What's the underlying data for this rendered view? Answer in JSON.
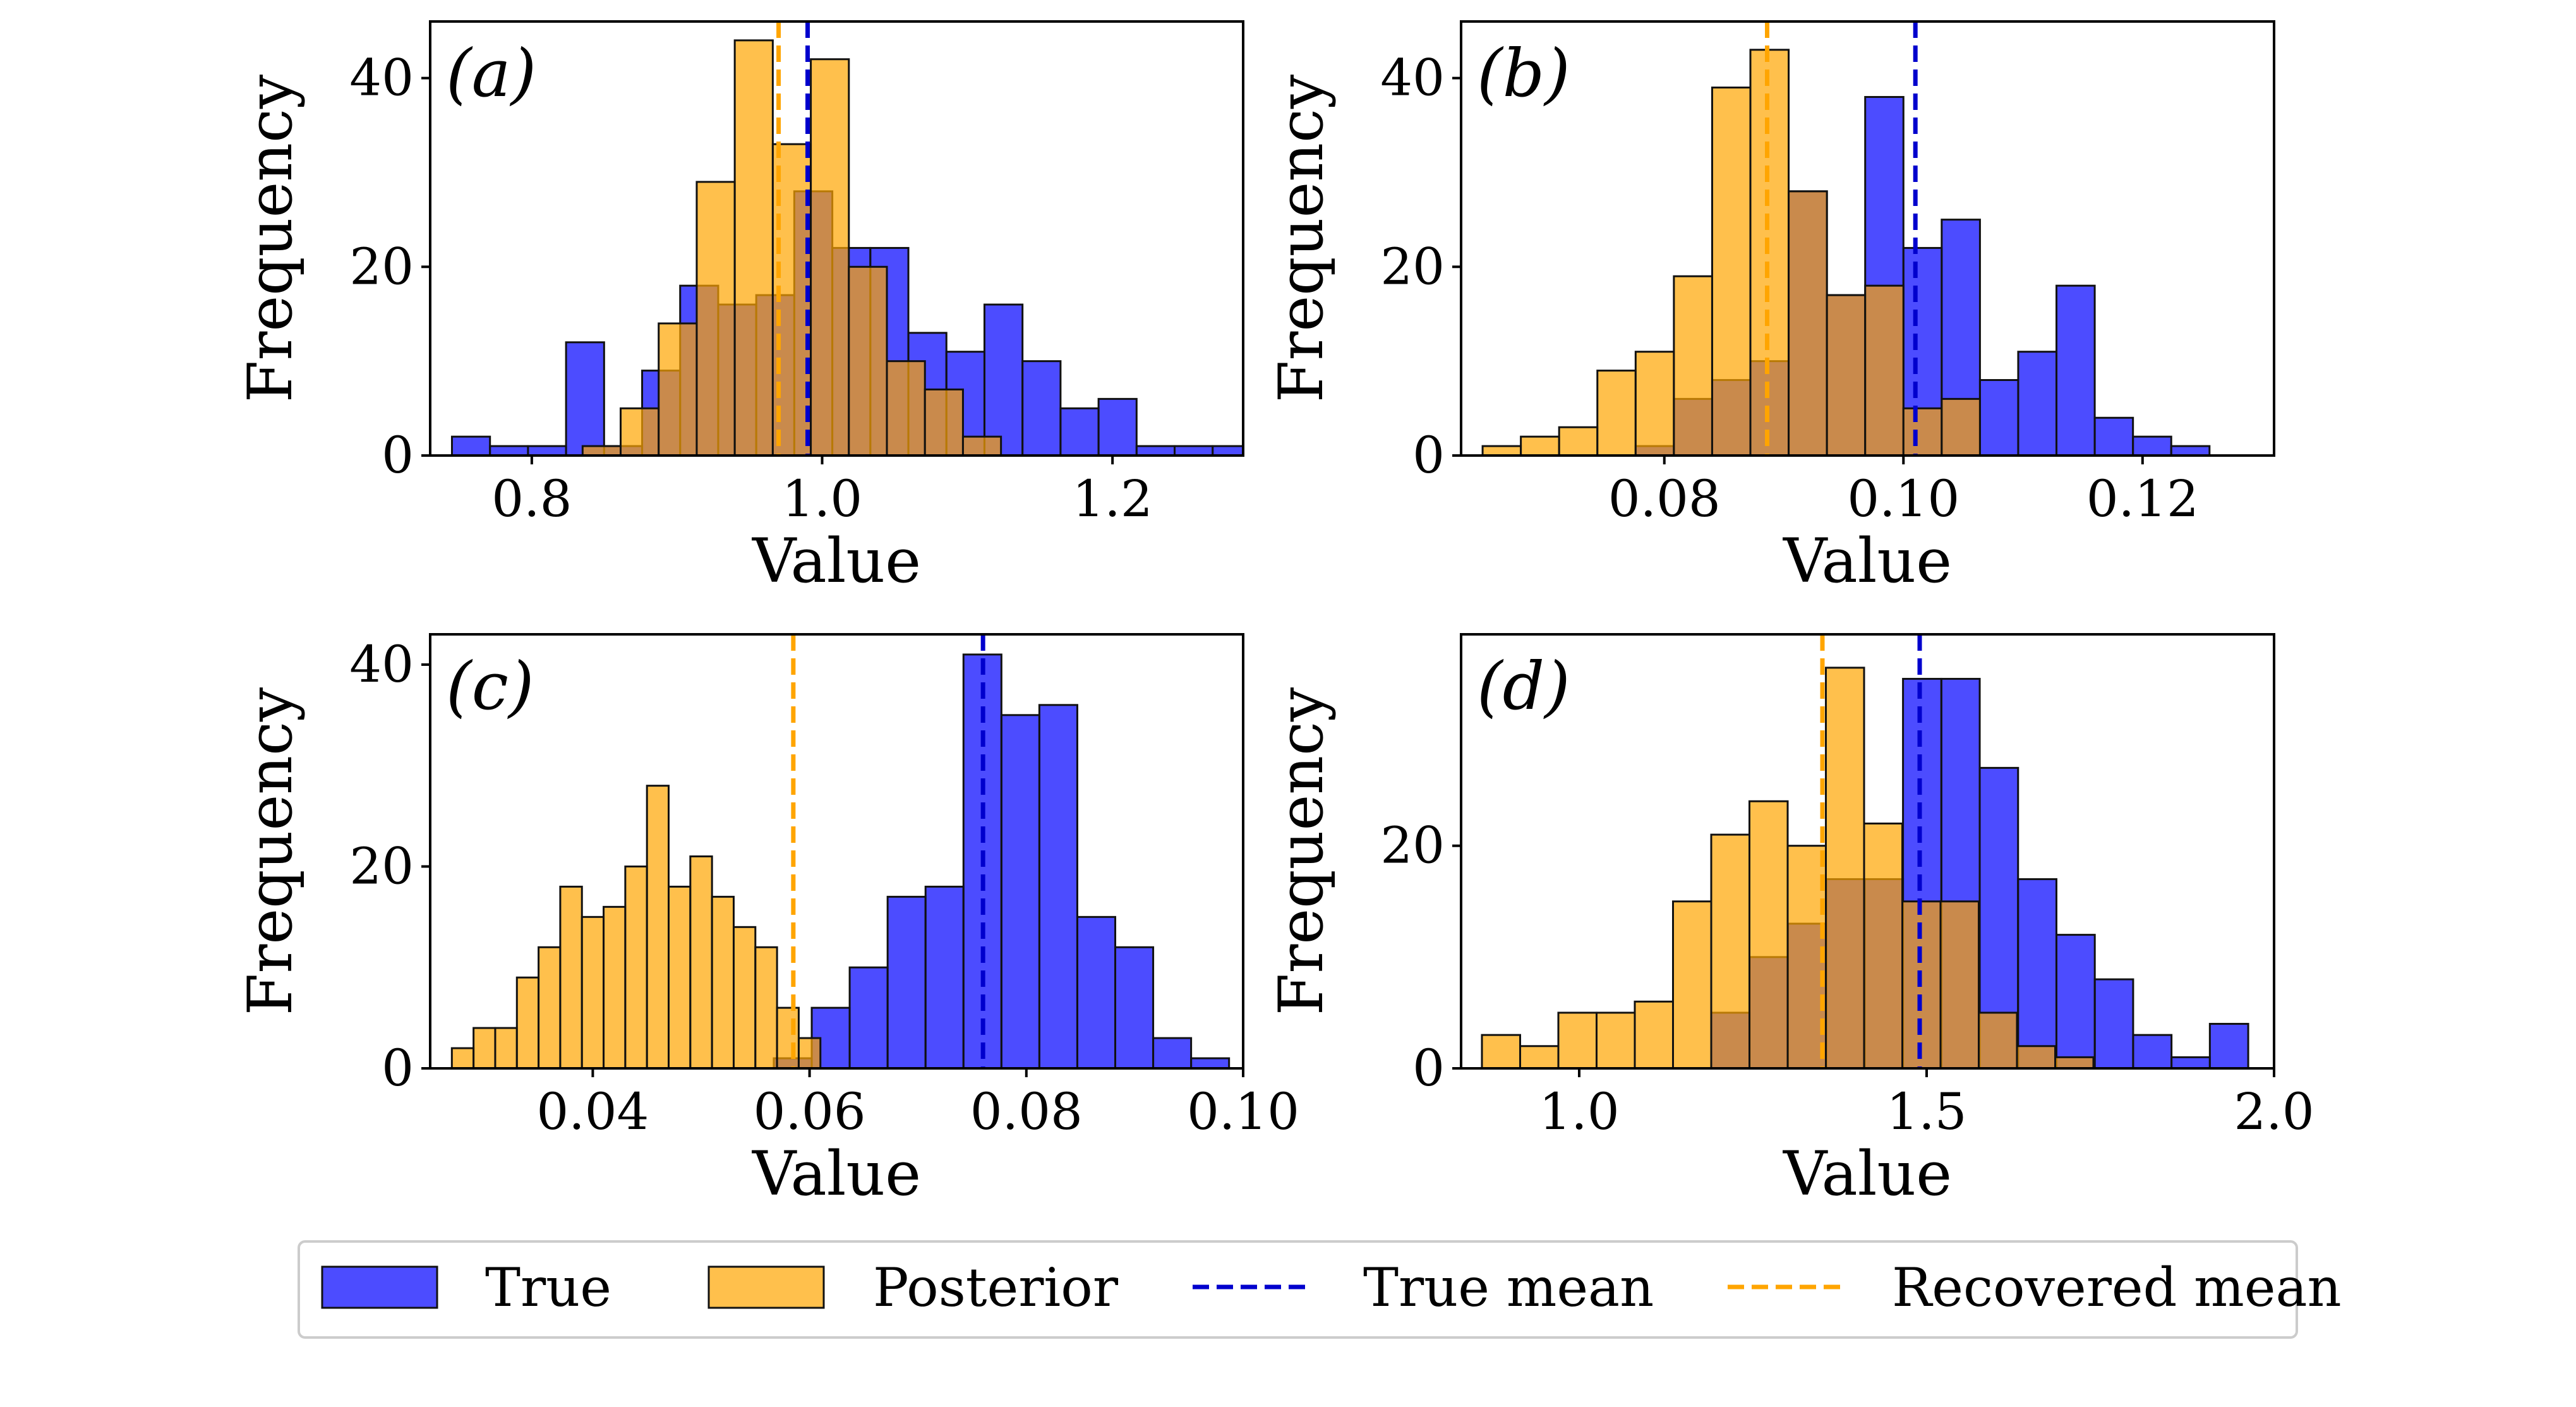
{
  "colors": {
    "true_fill": "#0000ff",
    "posterior_fill": "#ffa500",
    "true_mean_line": "#0000cd",
    "recovered_mean_line": "#ffa500"
  },
  "legend": {
    "items": [
      {
        "key": "true",
        "label": "True",
        "kind": "patch"
      },
      {
        "key": "posterior",
        "label": "Posterior",
        "kind": "patch"
      },
      {
        "key": "true_mean",
        "label": "True mean",
        "kind": "dashed"
      },
      {
        "key": "recovered_mean",
        "label": "Recovered mean",
        "kind": "dashed"
      }
    ]
  },
  "chart_data": [
    {
      "type": "histogram",
      "panel_label": "(a)",
      "xlabel": "Value",
      "ylabel": "Frequency",
      "xlim": [
        0.73,
        1.29
      ],
      "ylim": [
        0,
        46
      ],
      "xticks": [
        0.8,
        1.0,
        1.2
      ],
      "xtick_labels": [
        "0.8",
        "1.0",
        "1.2"
      ],
      "yticks": [
        0,
        20,
        40
      ],
      "ytick_labels": [
        "0",
        "20",
        "40"
      ],
      "true": {
        "start": 0.745,
        "bin_width": 0.0262,
        "counts": [
          2,
          1,
          1,
          12,
          1,
          9,
          18,
          16,
          17,
          28,
          22,
          22,
          13,
          11,
          16,
          10,
          5,
          6,
          1,
          1,
          1
        ]
      },
      "posterior": {
        "start": 0.835,
        "bin_width": 0.0262,
        "counts": [
          1,
          5,
          14,
          29,
          44,
          33,
          42,
          20,
          10,
          7,
          2
        ]
      },
      "true_mean": 0.99,
      "recovered_mean": 0.97
    },
    {
      "type": "histogram",
      "panel_label": "(b)",
      "xlabel": "Value",
      "ylabel": "Frequency",
      "xlim": [
        0.063,
        0.131
      ],
      "ylim": [
        0,
        46
      ],
      "xticks": [
        0.08,
        0.1,
        0.12
      ],
      "xtick_labels": [
        "0.08",
        "0.10",
        "0.12"
      ],
      "yticks": [
        0,
        20,
        40
      ],
      "ytick_labels": [
        "0",
        "20",
        "40"
      ],
      "true": {
        "start": 0.0776,
        "bin_width": 0.0032,
        "counts": [
          1,
          6,
          8,
          10,
          28,
          17,
          38,
          22,
          25,
          8,
          11,
          18,
          4,
          2,
          1
        ]
      },
      "posterior": {
        "start": 0.0648,
        "bin_width": 0.0032,
        "counts": [
          1,
          2,
          3,
          9,
          11,
          19,
          39,
          43,
          28,
          17,
          18,
          5,
          6
        ]
      },
      "true_mean": 0.101,
      "recovered_mean": 0.0886
    },
    {
      "type": "histogram",
      "panel_label": "(c)",
      "xlabel": "Value",
      "ylabel": "Frequency",
      "xlim": [
        0.025,
        0.1
      ],
      "ylim": [
        0,
        43
      ],
      "xticks": [
        0.04,
        0.06,
        0.08,
        0.1
      ],
      "xtick_labels": [
        "0.04",
        "0.06",
        "0.08",
        "0.10"
      ],
      "yticks": [
        0,
        20,
        40
      ],
      "ytick_labels": [
        "0",
        "20",
        "40"
      ],
      "true": {
        "start": 0.0567,
        "bin_width": 0.0035,
        "counts": [
          1,
          6,
          10,
          17,
          18,
          41,
          35,
          36,
          15,
          12,
          3,
          1
        ]
      },
      "posterior": {
        "start": 0.027,
        "bin_width": 0.002,
        "counts": [
          2,
          4,
          4,
          9,
          12,
          18,
          15,
          16,
          20,
          28,
          18,
          21,
          17,
          14,
          12,
          6,
          3
        ]
      },
      "true_mean": 0.076,
      "recovered_mean": 0.0585
    },
    {
      "type": "histogram",
      "panel_label": "(d)",
      "xlabel": "Value",
      "ylabel": "Frequency",
      "xlim": [
        0.83,
        2.0
      ],
      "ylim": [
        0,
        39
      ],
      "xticks": [
        1.0,
        1.5,
        2.0
      ],
      "xtick_labels": [
        "1.0",
        "1.5",
        "2.0"
      ],
      "yticks": [
        0,
        20
      ],
      "ytick_labels": [
        "0",
        "20"
      ],
      "true": {
        "start": 1.19,
        "bin_width": 0.0552,
        "counts": [
          5,
          10,
          13,
          17,
          17,
          35,
          35,
          27,
          17,
          12,
          8,
          3,
          1,
          4
        ]
      },
      "posterior": {
        "start": 0.86,
        "bin_width": 0.055,
        "counts": [
          3,
          2,
          5,
          5,
          6,
          15,
          21,
          24,
          20,
          36,
          22,
          15,
          15,
          5,
          2,
          1
        ]
      },
      "true_mean": 1.49,
      "recovered_mean": 1.35
    }
  ]
}
